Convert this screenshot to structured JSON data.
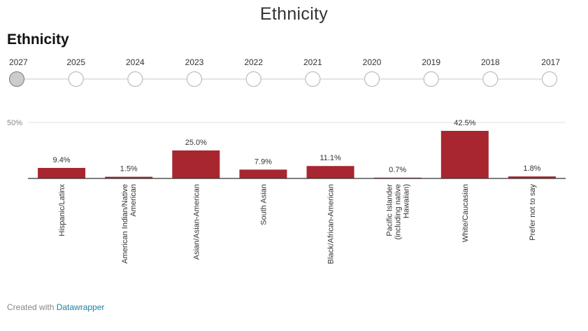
{
  "page_title": "Ethnicity",
  "chart_title": "Ethnicity",
  "timeline": {
    "years": [
      "2027",
      "2025",
      "2024",
      "2023",
      "2022",
      "2021",
      "2020",
      "2019",
      "2018",
      "2017"
    ],
    "selected": "2027"
  },
  "chart_data": {
    "type": "bar",
    "categories": [
      "Hispanic/Latinx",
      "American Indian/Native American",
      "Asian/Asian-American",
      "South Asian",
      "Black/African-American",
      "Pacific Islander (including native Hawaiian)",
      "White/Caucasian",
      "Prefer not to say"
    ],
    "values": [
      9.4,
      1.5,
      25.0,
      7.9,
      11.1,
      0.7,
      42.5,
      1.8
    ],
    "value_labels": [
      "9.4%",
      "1.5%",
      "25.0%",
      "7.9%",
      "11.1%",
      "0.7%",
      "42.5%",
      "1.8%"
    ],
    "y_tick_label": "50%",
    "ylim": [
      0,
      50
    ],
    "bar_color": "#a8262f",
    "grid": true
  },
  "footer": {
    "prefix": "Created with ",
    "link": "Datawrapper",
    "link_color": "#1d81a2"
  }
}
